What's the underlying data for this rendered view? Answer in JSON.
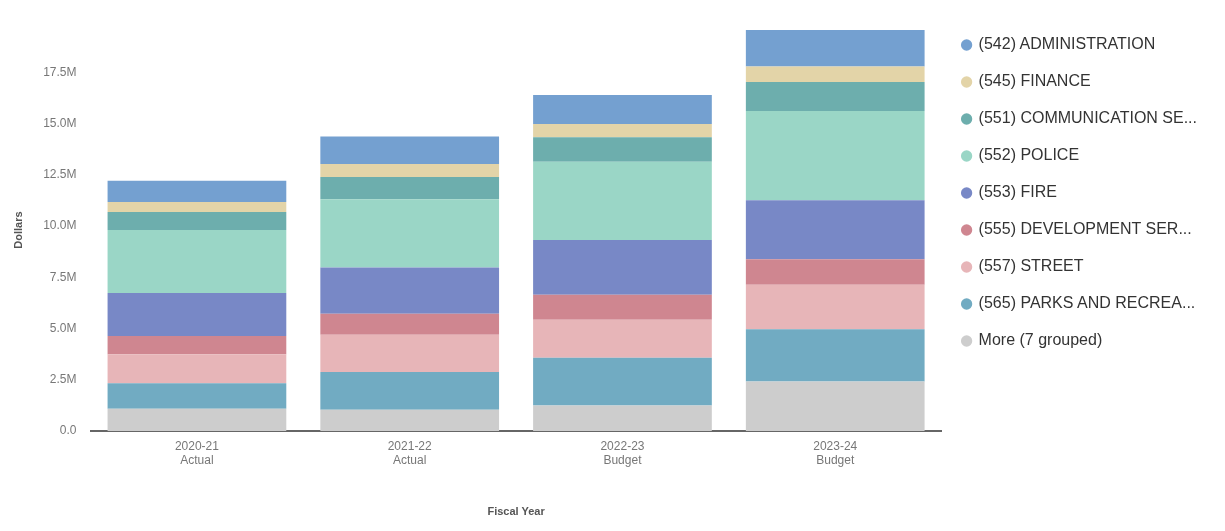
{
  "chart_data": {
    "type": "bar",
    "stacked": true,
    "xlabel": "Fiscal Year",
    "ylabel": "Dollars",
    "legend": "right",
    "grid": false,
    "categories": [
      "2020-21\nActual",
      "2021-22\nActual",
      "2022-23\nBudget",
      "2023-24\nBudget"
    ],
    "ylim": [
      0,
      19.6
    ],
    "yticks": [
      {
        "value": 0,
        "label": "0.0"
      },
      {
        "value": 2.5,
        "label": "2.5M"
      },
      {
        "value": 5,
        "label": "5.0M"
      },
      {
        "value": 7.5,
        "label": "7.5M"
      },
      {
        "value": 10,
        "label": "10.0M"
      },
      {
        "value": 12.5,
        "label": "12.5M"
      },
      {
        "value": 15,
        "label": "15.0M"
      },
      {
        "value": 17.5,
        "label": "17.5M"
      }
    ],
    "series": [
      {
        "name": "More (7 grouped)",
        "color": "#cdcdcd",
        "values": [
          1.08,
          1.04,
          1.24,
          2.41
        ]
      },
      {
        "name": "(565) PARKS AND RECREA...",
        "color": "#71abc2",
        "values": [
          1.25,
          1.84,
          2.33,
          2.55
        ]
      },
      {
        "name": "(557) STREET",
        "color": "#e7b5b8",
        "values": [
          1.42,
          1.82,
          1.86,
          2.17
        ]
      },
      {
        "name": "(555) DEVELOPMENT SER...",
        "color": "#cf8690",
        "values": [
          0.89,
          1.02,
          1.22,
          1.25
        ]
      },
      {
        "name": "(553) FIRE",
        "color": "#7888c6",
        "values": [
          2.09,
          2.26,
          2.67,
          2.88
        ]
      },
      {
        "name": "(552) POLICE",
        "color": "#9ad6c6",
        "values": [
          3.07,
          3.33,
          3.82,
          4.35
        ]
      },
      {
        "name": "(551) COMMUNICATION SE...",
        "color": "#6daead",
        "values": [
          0.88,
          1.08,
          1.19,
          1.42
        ]
      },
      {
        "name": "(545) FINANCE",
        "color": "#e3d4a8",
        "values": [
          0.49,
          0.63,
          0.65,
          0.75
        ]
      },
      {
        "name": "(542) ADMINISTRATION",
        "color": "#74a0d0",
        "values": [
          1.04,
          1.35,
          1.41,
          1.78
        ]
      }
    ]
  }
}
